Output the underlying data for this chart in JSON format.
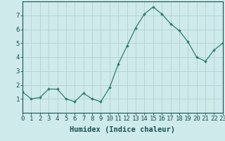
{
  "x": [
    0,
    1,
    2,
    3,
    4,
    5,
    6,
    7,
    8,
    9,
    10,
    11,
    12,
    13,
    14,
    15,
    16,
    17,
    18,
    19,
    20,
    21,
    22,
    23
  ],
  "y": [
    1.5,
    1.0,
    1.1,
    1.7,
    1.7,
    1.0,
    0.8,
    1.4,
    1.0,
    0.8,
    1.8,
    3.5,
    4.8,
    6.1,
    7.1,
    7.6,
    7.1,
    6.4,
    5.9,
    5.1,
    4.0,
    3.7,
    4.5,
    5.0
  ],
  "xlabel": "Humidex (Indice chaleur)",
  "xlim": [
    0,
    23
  ],
  "ylim": [
    0,
    8
  ],
  "yticks": [
    1,
    2,
    3,
    4,
    5,
    6,
    7
  ],
  "xticks": [
    0,
    1,
    2,
    3,
    4,
    5,
    6,
    7,
    8,
    9,
    10,
    11,
    12,
    13,
    14,
    15,
    16,
    17,
    18,
    19,
    20,
    21,
    22,
    23
  ],
  "line_color": "#2e7d6e",
  "marker": "D",
  "marker_size": 1.8,
  "bg_color": "#ceeaea",
  "grid_color": "#b8d4d4",
  "axis_color": "#1a5050",
  "xlabel_fontsize": 7.5,
  "tick_fontsize": 6.5
}
